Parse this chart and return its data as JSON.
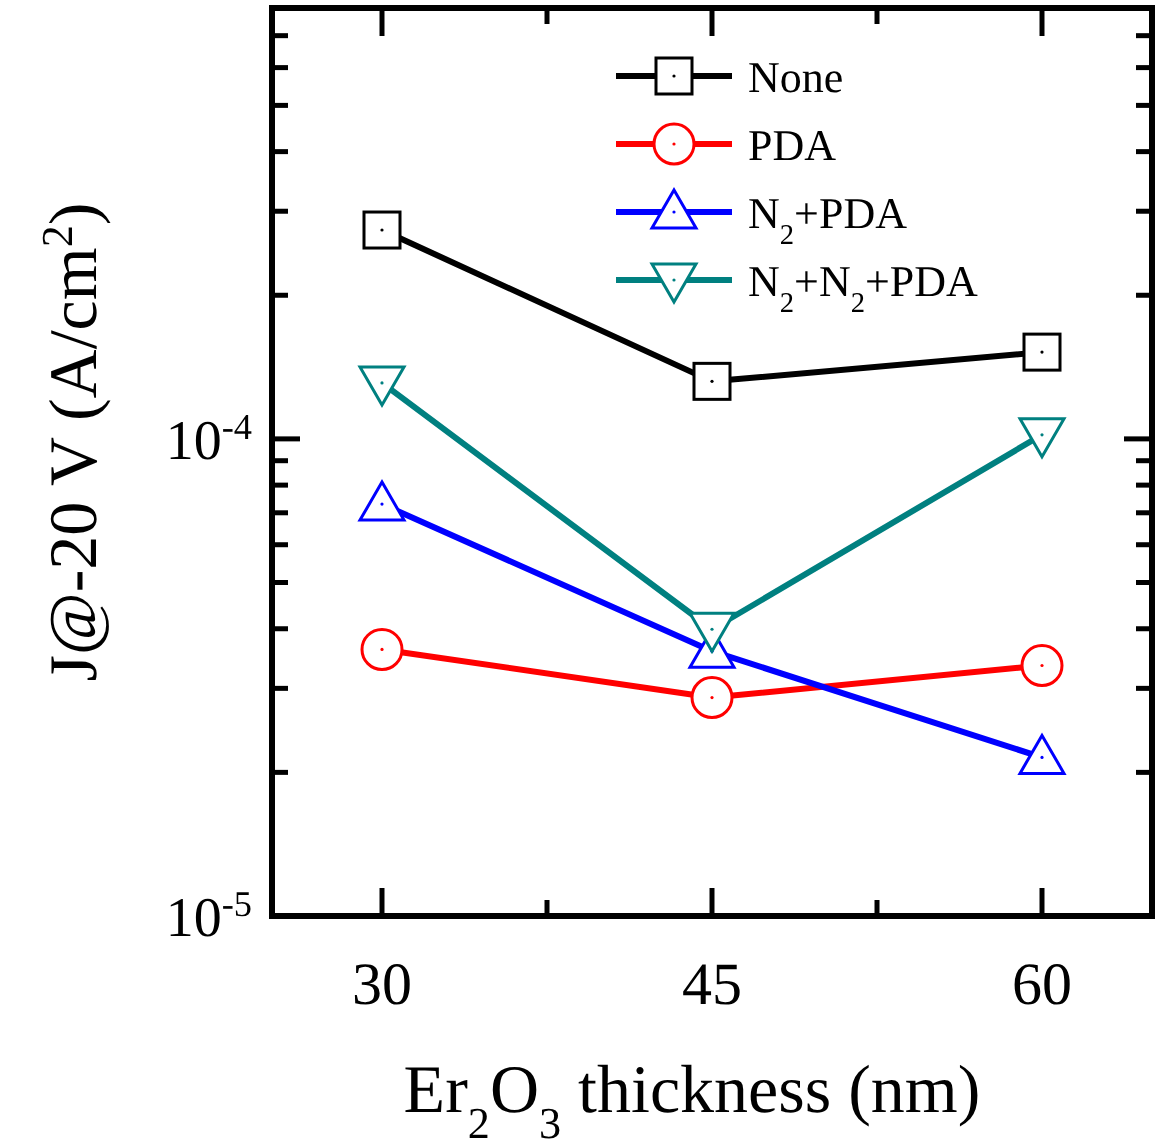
{
  "chart_data": {
    "type": "line",
    "xlabel": "Er$_{2}$O$_{3}$ thickness (nm)",
    "ylabel": "J@-20 V (A/cm$^{2}$)",
    "x": [
      30,
      45,
      60
    ],
    "log": "y",
    "xlim": [
      25,
      65
    ],
    "ylim": [
      1e-05,
      0.0008
    ],
    "xticks": [
      30,
      {
        "value": 37.5,
        "label": null
      },
      45,
      {
        "value": 52.5,
        "label": null
      },
      60
    ],
    "yticks": [
      {
        "value": 1e-05,
        "label": "10$^{-5}$"
      },
      {
        "value": 2e-05,
        "label": null
      },
      {
        "value": 3e-05,
        "label": null
      },
      {
        "value": 4e-05,
        "label": null
      },
      {
        "value": 5e-05,
        "label": null
      },
      {
        "value": 6e-05,
        "label": null
      },
      {
        "value": 7e-05,
        "label": null
      },
      {
        "value": 8e-05,
        "label": null
      },
      {
        "value": 9e-05,
        "label": null
      },
      {
        "value": 0.0001,
        "label": "10$^{-4}$"
      },
      {
        "value": 0.0002,
        "label": null
      },
      {
        "value": 0.0003,
        "label": null
      },
      {
        "value": 0.0004,
        "label": null
      },
      {
        "value": 0.0005,
        "label": null
      },
      {
        "value": 0.0006,
        "label": null
      },
      {
        "value": 0.0007,
        "label": null
      },
      {
        "value": 0.0008,
        "label": null
      }
    ],
    "grid": false,
    "legend": "top right",
    "line_style": "solid",
    "series": [
      {
        "name": "None",
        "color": "#000000",
        "marker": "square",
        "values": [
          0.000274,
          0.000132,
          0.000152
        ]
      },
      {
        "name": "PDA",
        "color": "#ff0000",
        "marker": "circle",
        "values": [
          3.62e-05,
          2.87e-05,
          3.35e-05
        ]
      },
      {
        "name": "N$_{2}$+PDA",
        "color": "#0000ff",
        "marker": "triangle",
        "values": [
          7.3e-05,
          3.59e-05,
          2.15e-05
        ]
      },
      {
        "name": "N$_{2}$+N$_{2}$+PDA",
        "color": "#008080",
        "marker": "triangle-down",
        "values": [
          0.000131,
          3.99e-05,
          0.000102
        ]
      }
    ]
  }
}
